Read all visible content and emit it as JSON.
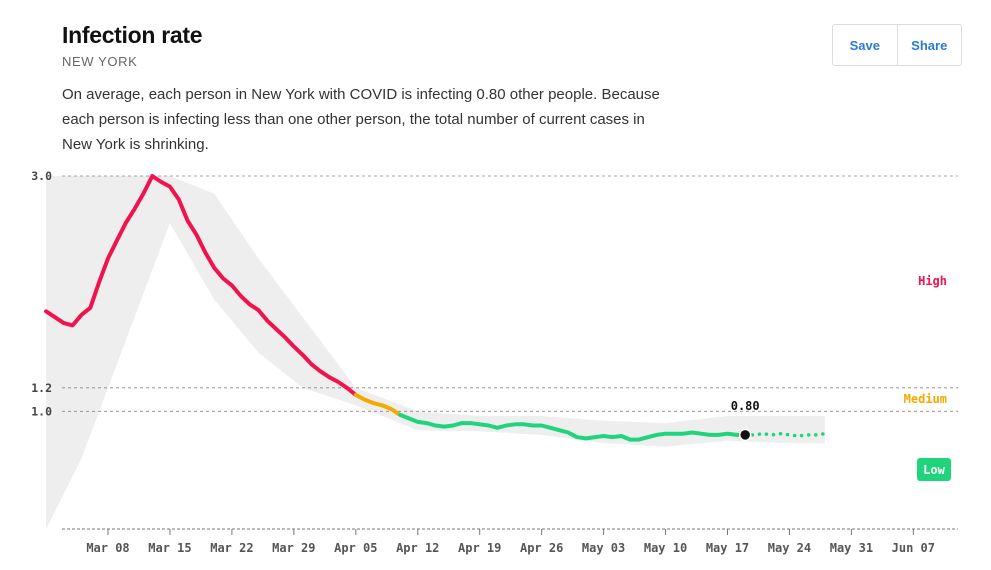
{
  "header": {
    "title": "Infection rate",
    "subtitle": "NEW YORK",
    "description": "On average, each person in New York with COVID is infecting 0.80 other people. Because each person is infecting less than one other person, the total number of current cases in New York is shrinking."
  },
  "actions": {
    "save_label": "Save",
    "share_label": "Share"
  },
  "colors": {
    "high": "#f0134d",
    "medium": "#f5a800",
    "low": "#1fd47a",
    "band": "#eeeeee",
    "gridline": "#888888",
    "accent": "#2a7ad6"
  },
  "chart_data": {
    "type": "line",
    "title": "Infection rate",
    "ylim": [
      0,
      3.0
    ],
    "xlim": [
      "2020-03-01",
      "2020-06-10"
    ],
    "yticks": [
      {
        "value": 3.0,
        "label": "3.0"
      },
      {
        "value": 1.2,
        "label": "1.2"
      },
      {
        "value": 1.0,
        "label": "1.0"
      }
    ],
    "xticks": [
      {
        "date": "2020-03-08",
        "label": "Mar 08"
      },
      {
        "date": "2020-03-15",
        "label": "Mar 15"
      },
      {
        "date": "2020-03-22",
        "label": "Mar 22"
      },
      {
        "date": "2020-03-29",
        "label": "Mar 29"
      },
      {
        "date": "2020-04-05",
        "label": "Apr 05"
      },
      {
        "date": "2020-04-12",
        "label": "Apr 12"
      },
      {
        "date": "2020-04-19",
        "label": "Apr 19"
      },
      {
        "date": "2020-04-26",
        "label": "Apr 26"
      },
      {
        "date": "2020-05-03",
        "label": "May 03"
      },
      {
        "date": "2020-05-10",
        "label": "May 10"
      },
      {
        "date": "2020-05-17",
        "label": "May 17"
      },
      {
        "date": "2020-05-24",
        "label": "May 24"
      },
      {
        "date": "2020-05-31",
        "label": "May 31"
      },
      {
        "date": "2020-06-07",
        "label": "Jun 07"
      }
    ],
    "zones": [
      {
        "name": "High",
        "label": "High",
        "min": 1.2,
        "color_key": "high"
      },
      {
        "name": "Medium",
        "label": "Medium",
        "min": 1.0,
        "color_key": "medium"
      },
      {
        "name": "Low",
        "label": "Low",
        "min": 0,
        "color_key": "low"
      }
    ],
    "current": {
      "date": "2020-05-19",
      "value": 0.8,
      "label": "0.80"
    },
    "series": [
      {
        "name": "Rt (reported)",
        "x": [
          "2020-03-01",
          "2020-03-02",
          "2020-03-03",
          "2020-03-04",
          "2020-03-05",
          "2020-03-06",
          "2020-03-07",
          "2020-03-08",
          "2020-03-09",
          "2020-03-10",
          "2020-03-11",
          "2020-03-12",
          "2020-03-13",
          "2020-03-14",
          "2020-03-15",
          "2020-03-16",
          "2020-03-17",
          "2020-03-18",
          "2020-03-19",
          "2020-03-20",
          "2020-03-21",
          "2020-03-22",
          "2020-03-23",
          "2020-03-24",
          "2020-03-25",
          "2020-03-26",
          "2020-03-27",
          "2020-03-28",
          "2020-03-29",
          "2020-03-30",
          "2020-03-31",
          "2020-04-01",
          "2020-04-02",
          "2020-04-03",
          "2020-04-04",
          "2020-04-05",
          "2020-04-06",
          "2020-04-07",
          "2020-04-08",
          "2020-04-09",
          "2020-04-10",
          "2020-04-11",
          "2020-04-12",
          "2020-04-13",
          "2020-04-14",
          "2020-04-15",
          "2020-04-16",
          "2020-04-17",
          "2020-04-18",
          "2020-04-19",
          "2020-04-20",
          "2020-04-21",
          "2020-04-22",
          "2020-04-23",
          "2020-04-24",
          "2020-04-25",
          "2020-04-26",
          "2020-04-27",
          "2020-04-28",
          "2020-04-29",
          "2020-04-30",
          "2020-05-01",
          "2020-05-02",
          "2020-05-03",
          "2020-05-04",
          "2020-05-05",
          "2020-05-06",
          "2020-05-07",
          "2020-05-08",
          "2020-05-09",
          "2020-05-10",
          "2020-05-11",
          "2020-05-12",
          "2020-05-13",
          "2020-05-14",
          "2020-05-15",
          "2020-05-16",
          "2020-05-17",
          "2020-05-18",
          "2020-05-19"
        ],
        "values": [
          1.85,
          1.8,
          1.75,
          1.73,
          1.82,
          1.88,
          2.1,
          2.3,
          2.45,
          2.6,
          2.72,
          2.85,
          3.0,
          2.95,
          2.91,
          2.8,
          2.62,
          2.5,
          2.35,
          2.22,
          2.13,
          2.07,
          1.98,
          1.91,
          1.86,
          1.77,
          1.7,
          1.63,
          1.55,
          1.48,
          1.4,
          1.34,
          1.29,
          1.25,
          1.2,
          1.14,
          1.1,
          1.07,
          1.05,
          1.02,
          0.97,
          0.94,
          0.91,
          0.9,
          0.88,
          0.87,
          0.88,
          0.9,
          0.9,
          0.89,
          0.88,
          0.86,
          0.88,
          0.89,
          0.89,
          0.88,
          0.88,
          0.86,
          0.84,
          0.82,
          0.78,
          0.77,
          0.78,
          0.79,
          0.78,
          0.79,
          0.76,
          0.76,
          0.78,
          0.8,
          0.81,
          0.81,
          0.81,
          0.82,
          0.81,
          0.8,
          0.8,
          0.81,
          0.8,
          0.8
        ]
      },
      {
        "name": "Rt (projected)",
        "x": [
          "2020-05-19",
          "2020-05-20",
          "2020-05-21",
          "2020-05-22",
          "2020-05-23",
          "2020-05-24",
          "2020-05-25",
          "2020-05-26",
          "2020-05-27",
          "2020-05-28"
        ],
        "values": [
          0.8,
          0.8,
          0.81,
          0.8,
          0.81,
          0.8,
          0.79,
          0.8,
          0.8,
          0.81
        ]
      }
    ],
    "band": {
      "name": "Confidence interval",
      "x": [
        "2020-03-01",
        "2020-03-05",
        "2020-03-10",
        "2020-03-15",
        "2020-03-20",
        "2020-03-25",
        "2020-03-30",
        "2020-04-05",
        "2020-04-12",
        "2020-04-19",
        "2020-04-26",
        "2020-05-03",
        "2020-05-10",
        "2020-05-17",
        "2020-05-24",
        "2020-05-28"
      ],
      "upper": [
        3.0,
        3.0,
        3.0,
        3.0,
        2.85,
        2.3,
        1.8,
        1.2,
        1.0,
        0.96,
        0.96,
        0.92,
        0.9,
        0.96,
        0.96,
        0.96
      ],
      "lower": [
        0.0,
        0.6,
        1.6,
        2.6,
        1.95,
        1.5,
        1.2,
        1.05,
        0.84,
        0.83,
        0.8,
        0.73,
        0.7,
        0.75,
        0.73,
        0.73
      ]
    }
  }
}
